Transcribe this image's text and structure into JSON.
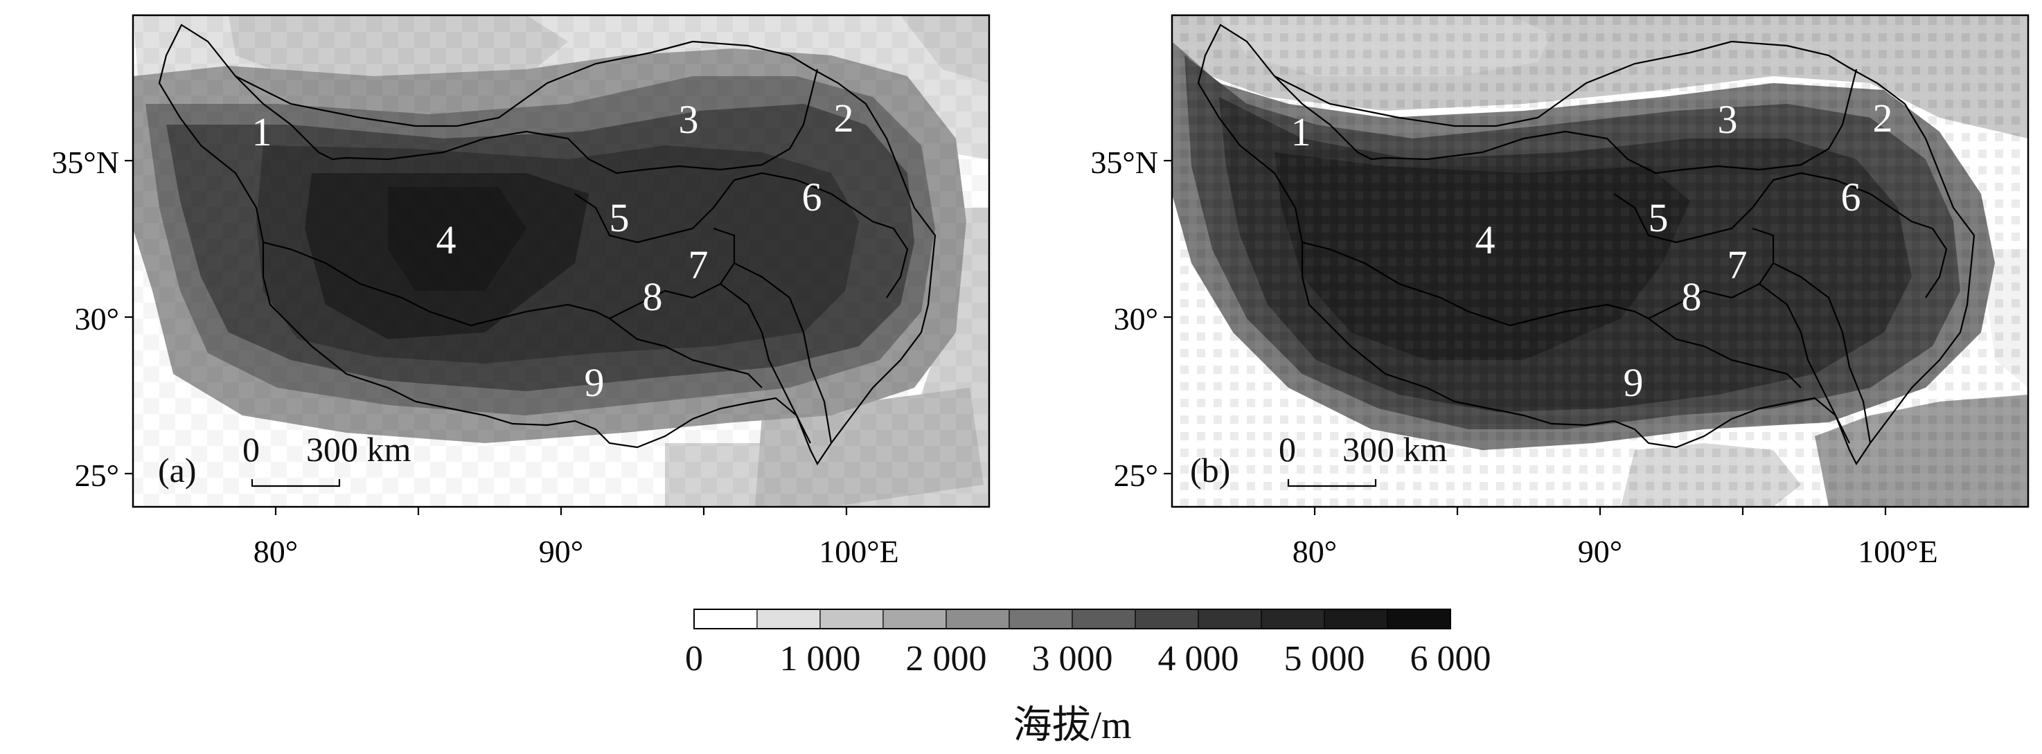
{
  "panels": [
    {
      "id": "a",
      "label": "(a)",
      "lat_ticks": [
        "35°N",
        "30°",
        "25°"
      ],
      "lon_ticks": [
        "80°",
        "90°",
        "100°E"
      ],
      "scale_bar": {
        "zero": "0",
        "dist": "300 km"
      },
      "regions": [
        "1",
        "2",
        "3",
        "4",
        "5",
        "6",
        "7",
        "8",
        "9"
      ]
    },
    {
      "id": "b",
      "label": "(b)",
      "lat_ticks": [
        "35°N",
        "30°",
        "25°"
      ],
      "lon_ticks": [
        "80°",
        "90°",
        "100°E"
      ],
      "scale_bar": {
        "zero": "0",
        "dist": "300 km"
      },
      "regions": [
        "1",
        "2",
        "3",
        "4",
        "5",
        "6",
        "7",
        "8",
        "9"
      ]
    }
  ],
  "colorbar": {
    "title": "海拔/m",
    "labels": [
      "0",
      "1 000",
      "2 000",
      "3 000",
      "4 000",
      "5 000",
      "6 000"
    ],
    "colors": [
      "#ffffff",
      "#e0e0e0",
      "#c6c6c6",
      "#a9a9a9",
      "#8e8e8e",
      "#747474",
      "#5c5c5c",
      "#454545",
      "#333333",
      "#262626",
      "#1a1a1a",
      "#0e0e0e"
    ]
  },
  "legend_fill_colors": {
    "white": "#ffffff",
    "very_light": "#e4e4e4",
    "light": "#c8c8c8",
    "mid": "#8f8f8f",
    "dark": "#4a4a4a",
    "plateau": "#353535",
    "deep": "#1f1f1f"
  }
}
